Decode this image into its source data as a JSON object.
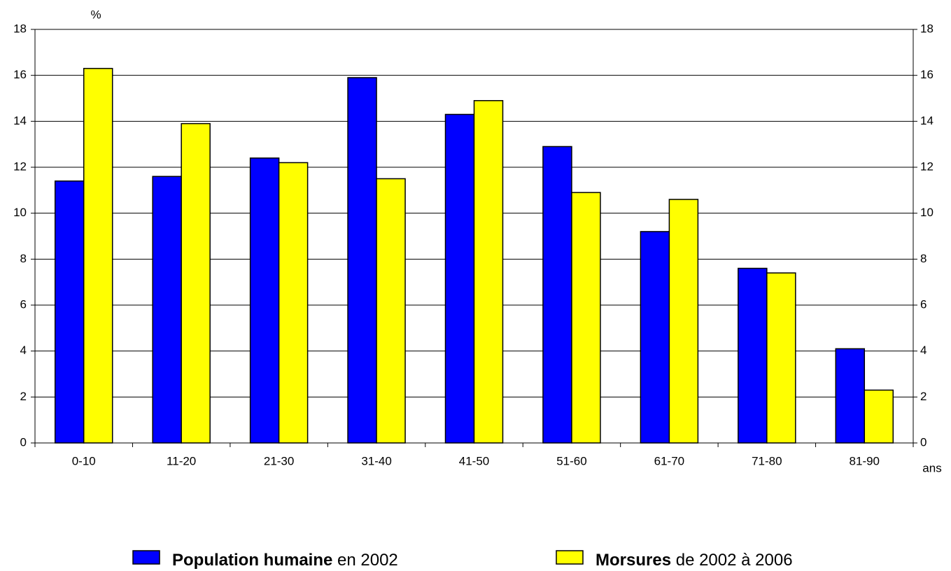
{
  "chart_data": {
    "type": "bar",
    "y_label": "%",
    "x_label": "ans",
    "categories": [
      "0-10",
      "11-20",
      "21-30",
      "31-40",
      "41-50",
      "51-60",
      "61-70",
      "71-80",
      "81-90"
    ],
    "series": [
      {
        "name": "Population humaine",
        "name_suffix": "en 2002",
        "color": "#0000ff",
        "values": [
          11.4,
          11.6,
          12.4,
          15.9,
          14.3,
          12.9,
          9.2,
          7.6,
          4.1
        ]
      },
      {
        "name": "Morsures",
        "name_suffix": "de 2002 à 2006",
        "color": "#ffff00",
        "values": [
          16.3,
          13.9,
          12.2,
          11.5,
          14.9,
          10.9,
          10.6,
          7.4,
          2.3
        ]
      }
    ],
    "ylim": [
      0,
      18
    ],
    "yticks": [
      0,
      2,
      4,
      6,
      8,
      10,
      12,
      14,
      16,
      18
    ],
    "y2lim": [
      0,
      18
    ],
    "y2ticks": [
      0,
      2,
      4,
      6,
      8,
      10,
      12,
      14,
      16,
      18
    ],
    "grid": true
  }
}
